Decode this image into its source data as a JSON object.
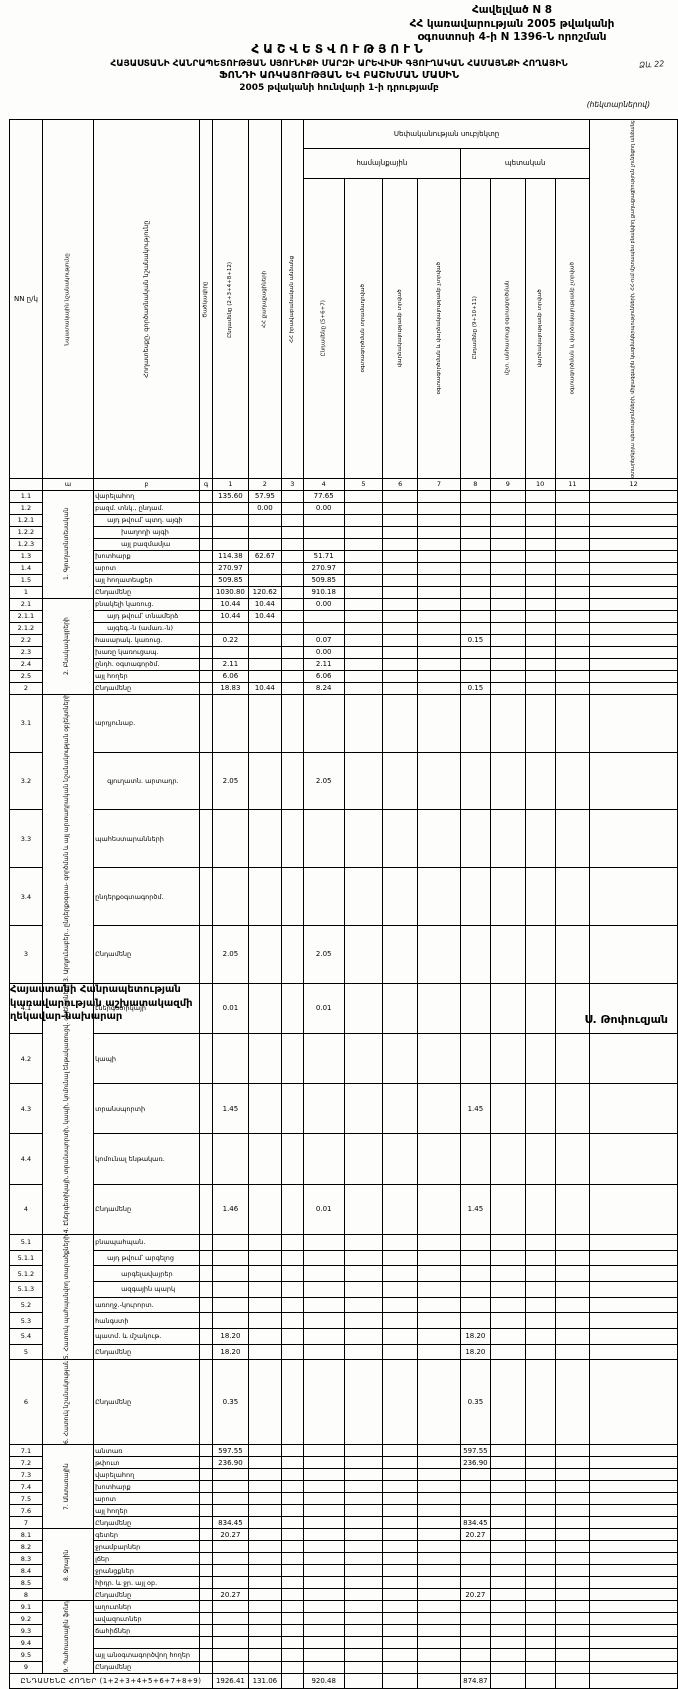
{
  "header": {
    "appendix": [
      "Հավելված N 8",
      "ՀՀ կառավարության 2005 թվականի",
      "օգոստոսի 4-ի N 1396-Ն որոշման"
    ],
    "handwritten_note": "Ձև 22"
  },
  "title": {
    "line1": "ՀԱՇՎԵՏՎՈՒԹՅՈՒՆ",
    "line2": "ՀԱՅԱՍՏԱՆԻ ՀԱՆՐԱՊԵՏՈՒԹՅԱՆ ՍՅՈՒՆԻՔԻ ՄԱՐԶԻ ԱՐԵՎԻՍԻ ԳՅՈՒՂԱԿԱՆ ՀԱՄԱՅՆՔԻ ՀՈՂԱՅԻՆ",
    "line3": "ՖՈՆԴԻ ԱՌԿԱՅՈՒԹՅԱՆ ԵՎ ԲԱՇԽՄԱՆ ՄԱՍԻՆ",
    "line4": "2005 թվականի հունվարի 1-ի դրությամբ",
    "units_note": "(հեկտարներով)"
  },
  "table": {
    "subject_header": "Սեփականության սուբյեկտը",
    "group_community": "համայնքային",
    "group_state": "պետական",
    "columns": {
      "nn": "NN ը/կ",
      "purpose": "Նպատակային նշանակությունը",
      "landtype": "Հողատեսքը, գործառնական նշանակությունը",
      "code": "Ծածկագիրը",
      "c1": "Ընդամենը (2+3+4+8+12)",
      "c2": "ՀՀ քաղաքացիների",
      "c3": "ՀՀ իրավաբանական անձանց",
      "c4": "Ընդամենը (5+6+7)",
      "c5": "օգտագործման տրամադրված",
      "c6": "վարձակալությամբ տրված",
      "c7": "օգտագործման և վարձակալությամբ չտրված",
      "c8": "Ընդամենը (9+10+11)",
      "c9": "մշտ. անհատույց օգտագործման",
      "c10": "վարձակալությամբ տրված",
      "c11": "օգտագործման և վարձակալությամբ չտրված",
      "c12": "օտարերկրյա պետությունների, միջազգային կազմակերպությունների, ՀՀ-ում մշտապես բնակվող քաղաքացիություն չունեցող անձանց"
    },
    "letter_row": [
      "",
      "ա",
      "բ",
      "գ",
      "1",
      "2",
      "3",
      "4",
      "5",
      "6",
      "7",
      "8",
      "9",
      "10",
      "11",
      "12"
    ],
    "sections": [
      {
        "num": "1",
        "label": "1. Գյուղատնտեսական",
        "rows": [
          {
            "num": "1.1",
            "label": "վարելահող",
            "values": {
              "1": "135.60",
              "2": "57.95",
              "4": "77.65"
            }
          },
          {
            "num": "1.2",
            "label": "բազմ. տնկ., ընդամ.",
            "values": {
              "2": "0.00",
              "4": "0.00"
            }
          },
          {
            "num": "1.2.1",
            "label": "այդ թվում՝ պտղ. այգի",
            "indent": 1
          },
          {
            "num": "1.2.2",
            "label": "խաղողի այգի",
            "indent": 2
          },
          {
            "num": "1.2.3",
            "label": "այլ բազմամյա",
            "indent": 2
          },
          {
            "num": "1.3",
            "label": "խոտհարք",
            "values": {
              "1": "114.38",
              "2": "62.67",
              "4": "51.71"
            }
          },
          {
            "num": "1.4",
            "label": "արոտ",
            "values": {
              "1": "270.97",
              "4": "270.97"
            }
          },
          {
            "num": "1.5",
            "label": "այլ հողատեսքեր",
            "values": {
              "1": "509.85",
              "4": "509.85"
            }
          },
          {
            "num": "1",
            "label": "Ընդամենը",
            "total": true,
            "values": {
              "1": "1030.80",
              "2": "120.62",
              "4": "910.18"
            }
          }
        ]
      },
      {
        "num": "2",
        "label": "2. Բնակավայրերի",
        "rows": [
          {
            "num": "2.1",
            "label": "բնակելի կառուց.",
            "values": {
              "1": "10.44",
              "2": "10.44",
              "4": "0.00"
            }
          },
          {
            "num": "2.1.1",
            "label": "այդ թվում՝ տնամերձ",
            "indent": 1,
            "values": {
              "1": "10.44",
              "2": "10.44"
            }
          },
          {
            "num": "2.1.2",
            "label": "այգեգ.-ն (ամառ.-ն)",
            "indent": 1
          },
          {
            "num": "2.2",
            "label": "հասարակ. կառուց.",
            "values": {
              "1": "0.22",
              "4": "0.07",
              "8": "0.15"
            }
          },
          {
            "num": "2.3",
            "label": "խառը կառուցապ.",
            "values": {
              "4": "0.00"
            }
          },
          {
            "num": "2.4",
            "label": "ընդհ. օգտագործմ.",
            "values": {
              "1": "2.11",
              "4": "2.11"
            }
          },
          {
            "num": "2.5",
            "label": "այլ հողեր",
            "values": {
              "1": "6.06",
              "4": "6.06"
            }
          },
          {
            "num": "2",
            "label": "Ընդամենը",
            "total": true,
            "values": {
              "1": "18.83",
              "2": "10.44",
              "4": "8.24",
              "8": "0.15"
            }
          }
        ]
      },
      {
        "num": "3",
        "label": "3. Արդյունաբեր., ընդերքօգտա- գործման և այլ արտադրական նշանակության օբյեկտների",
        "rows": [
          {
            "num": "3.1",
            "label": "արդյունաբ."
          },
          {
            "num": "3.2",
            "label": "գյուղատն. արտադր.",
            "indent": 1,
            "values": {
              "1": "2.05",
              "4": "2.05"
            }
          },
          {
            "num": "3.3",
            "label": "պահեստարանների"
          },
          {
            "num": "3.4",
            "label": "ընդերքօգտագործմ."
          },
          {
            "num": "3",
            "label": "Ընդամենը",
            "total": true,
            "values": {
              "1": "2.05",
              "4": "2.05"
            }
          }
        ]
      },
      {
        "num": "4",
        "label": "4. Էներգետիկայի, տրանսպորտի, կապի, կոմունալ ենթակառուցվ. օբյեկտների",
        "rows": [
          {
            "num": "4.1",
            "label": "էներգետիկայի",
            "values": {
              "1": "0.01",
              "4": "0.01"
            }
          },
          {
            "num": "4.2",
            "label": "կապի"
          },
          {
            "num": "4.3",
            "label": "տրանսպորտի",
            "values": {
              "1": "1.45",
              "8": "1.45"
            }
          },
          {
            "num": "4.4",
            "label": "կոմունալ ենթակառ."
          },
          {
            "num": "4",
            "label": "Ընդամենը",
            "total": true,
            "values": {
              "1": "1.46",
              "4": "0.01",
              "8": "1.45"
            }
          }
        ]
      },
      {
        "num": "5",
        "label": "5. Հատուկ պահպանվող տարածքների",
        "rows": [
          {
            "num": "5.1",
            "label": "բնապահպան."
          },
          {
            "num": "5.1.1",
            "label": "այդ թվում՝ արգելոց",
            "indent": 1
          },
          {
            "num": "5.1.2",
            "label": "արգելավայրեր",
            "indent": 2
          },
          {
            "num": "5.1.3",
            "label": "ազգային պարկ",
            "indent": 2
          },
          {
            "num": "5.2",
            "label": "առողջ.-կուրորտ."
          },
          {
            "num": "5.3",
            "label": "հանգստի"
          },
          {
            "num": "5.4",
            "label": "պատմ. և մշակութ.",
            "values": {
              "1": "18.20",
              "8": "18.20"
            }
          },
          {
            "num": "5",
            "label": "Ընդամենը",
            "total": true,
            "values": {
              "1": "18.20",
              "8": "18.20"
            }
          }
        ]
      },
      {
        "num": "6",
        "label": "6. Հատուկ նշանակության",
        "tall": true,
        "rows": [
          {
            "num": "6",
            "label": "Ընդամենը",
            "total": true,
            "values": {
              "1": "0.35",
              "8": "0.35"
            }
          }
        ]
      },
      {
        "num": "7",
        "label": "7. Անտառային",
        "rows": [
          {
            "num": "7.1",
            "label": "անտառ",
            "values": {
              "1": "597.55",
              "8": "597.55"
            }
          },
          {
            "num": "7.2",
            "label": "թփուտ",
            "values": {
              "1": "236.90",
              "8": "236.90"
            }
          },
          {
            "num": "7.3",
            "label": "վարելահող"
          },
          {
            "num": "7.4",
            "label": "խոտհարք"
          },
          {
            "num": "7.5",
            "label": "արոտ"
          },
          {
            "num": "7.6",
            "label": "այլ հողեր"
          },
          {
            "num": "7",
            "label": "Ընդամենը",
            "total": true,
            "values": {
              "1": "834.45",
              "8": "834.45"
            }
          }
        ]
      },
      {
        "num": "8",
        "label": "8. Ջրային",
        "rows": [
          {
            "num": "8.1",
            "label": "գետեր",
            "values": {
              "1": "20.27",
              "8": "20.27"
            }
          },
          {
            "num": "8.2",
            "label": "ջրամբարներ"
          },
          {
            "num": "8.3",
            "label": "լճեր"
          },
          {
            "num": "8.4",
            "label": "ջրանցքներ"
          },
          {
            "num": "8.5",
            "label": "հիդր. և ջր. այլ օբ."
          },
          {
            "num": "8",
            "label": "Ընդամենը",
            "total": true,
            "values": {
              "1": "20.27",
              "8": "20.27"
            }
          }
        ]
      },
      {
        "num": "9",
        "label": "9. Պահուստային ֆոնդ",
        "rows": [
          {
            "num": "9.1",
            "label": "աղուտներ"
          },
          {
            "num": "9.2",
            "label": "ավազուտներ"
          },
          {
            "num": "9.3",
            "label": "ճահիճներ"
          },
          {
            "num": "9.4",
            "label": ""
          },
          {
            "num": "9.5",
            "label": "այլ անօգտագործվող հողեր"
          },
          {
            "num": "9",
            "label": "Ընդամենը",
            "total": true
          }
        ]
      }
    ],
    "grand_total": {
      "label": "ԸՆԴԱՄԵՆԸ ՀՈՂԵՐ (1+2+3+4+5+6+7+8+9)",
      "values": {
        "1": "1926.41",
        "2": "131.06",
        "4": "920.48",
        "8": "874.87"
      }
    }
  },
  "footer": {
    "left": [
      "Հայաստանի Հանրապետության",
      "կառավարության աշխատակազմի",
      "ղեկավար-նախարար"
    ],
    "right": "Ս. Թոփուզյան"
  }
}
